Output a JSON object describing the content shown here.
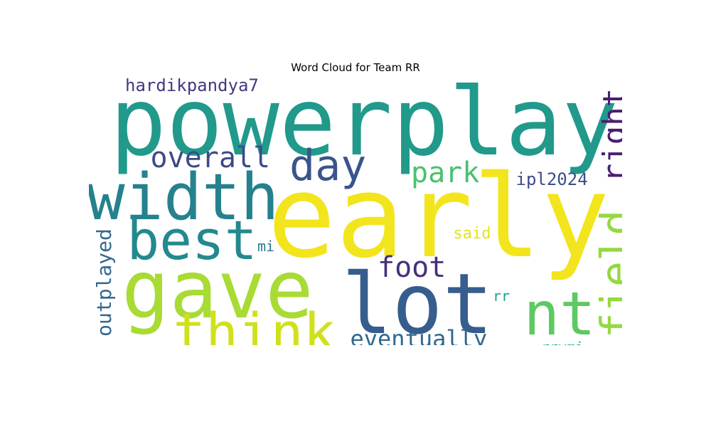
{
  "title": "Word Cloud for Team RR",
  "words": [
    {
      "text": "powerplay",
      "color": "#21998b"
    },
    {
      "text": "early",
      "color": "#f2e51d"
    },
    {
      "text": "width",
      "color": "#26818e"
    },
    {
      "text": "gave",
      "color": "#a8db34"
    },
    {
      "text": "lot",
      "color": "#365d8d"
    },
    {
      "text": "best",
      "color": "#23898e"
    },
    {
      "text": "think",
      "color": "#d0e11c"
    },
    {
      "text": "nt",
      "color": "#5ec962"
    },
    {
      "text": "field",
      "color": "#95d840"
    },
    {
      "text": "day",
      "color": "#3a548c"
    },
    {
      "text": "overall",
      "color": "#3e4989"
    },
    {
      "text": "park",
      "color": "#4ac16d"
    },
    {
      "text": "right",
      "color": "#481f70"
    },
    {
      "text": "foot",
      "color": "#462f7c"
    },
    {
      "text": "eventually",
      "color": "#31688e"
    },
    {
      "text": "outplayed",
      "color": "#31688e"
    },
    {
      "text": "hardikpandya7",
      "color": "#453781"
    },
    {
      "text": "ipl2024",
      "color": "#3e4c8a"
    },
    {
      "text": "said",
      "color": "#e2e418"
    },
    {
      "text": "mi",
      "color": "#2a788e"
    },
    {
      "text": "rr",
      "color": "#1f9e89"
    },
    {
      "text": "rrvmi",
      "color": "#22a884"
    }
  ]
}
